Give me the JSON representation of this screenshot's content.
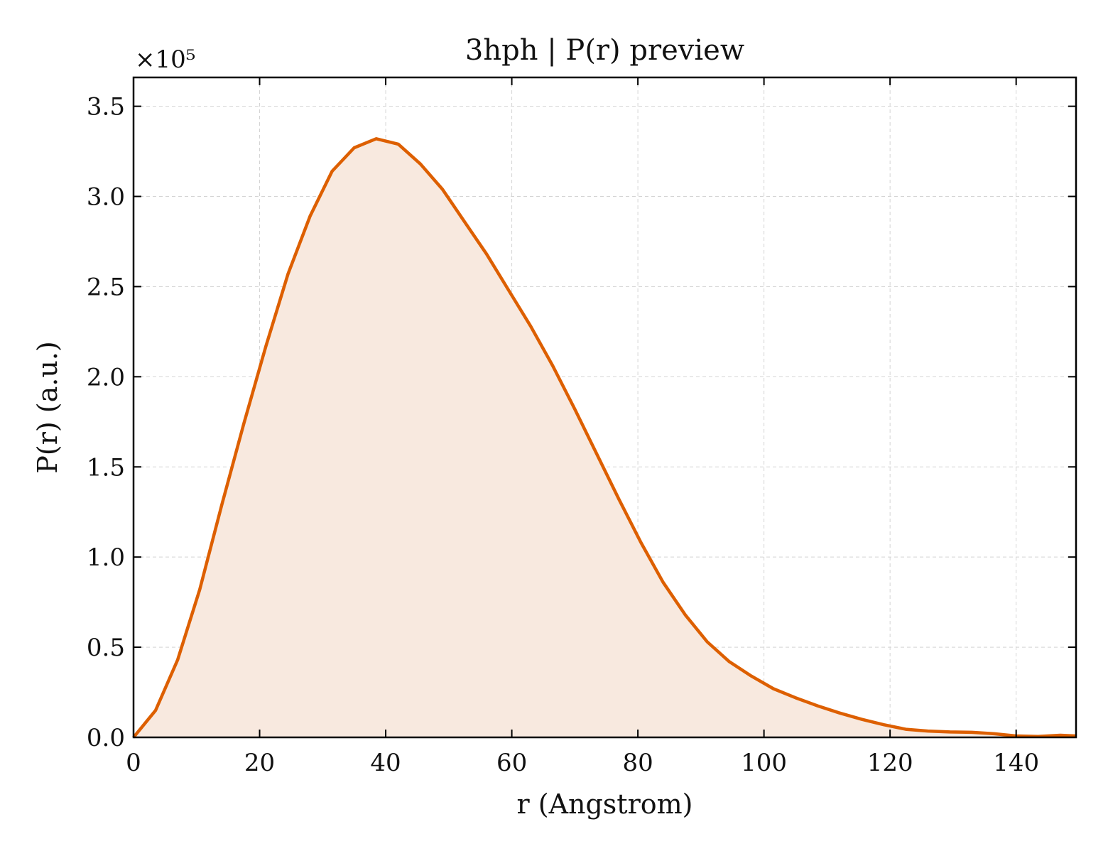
{
  "chart_data": {
    "type": "area",
    "title": "3hph | P(r) preview",
    "xlabel": "r (Angstrom)",
    "ylabel": "P(r) (a.u.)",
    "y_multiplier_label": "×10⁵",
    "xlim": [
      0,
      149.5
    ],
    "ylim": [
      0,
      3.66
    ],
    "y_units_factor": 100000,
    "grid": true,
    "legend": "none",
    "x_ticks": [
      0,
      20,
      40,
      60,
      80,
      100,
      120,
      140
    ],
    "x_tick_labels": [
      "0",
      "20",
      "40",
      "60",
      "80",
      "100",
      "120",
      "140"
    ],
    "y_ticks": [
      0,
      0.5,
      1.0,
      1.5,
      2.0,
      2.5,
      3.0,
      3.5
    ],
    "y_tick_labels": [
      "0.0",
      "0.5",
      "1.0",
      "1.5",
      "2.0",
      "2.5",
      "3.0",
      "3.5"
    ],
    "line_color": "#dd5f00",
    "fill_color": "#f8e9df",
    "series": [
      {
        "x": [
          0,
          3.5,
          7.0,
          10.5,
          14.0,
          17.5,
          21.0,
          24.5,
          28.0,
          31.5,
          35.0,
          38.5,
          42.0,
          45.5,
          49.0,
          52.5,
          56.0,
          59.5,
          63.0,
          66.5,
          70.0,
          73.5,
          77.0,
          80.5,
          84.0,
          87.5,
          91.0,
          94.5,
          98.0,
          101.5,
          105.0,
          108.5,
          112.0,
          115.5,
          119.0,
          122.5,
          126.0,
          129.5,
          133.0,
          136.5,
          140.0,
          143.5,
          147.0,
          149.5
        ],
        "y": [
          0.0,
          0.15,
          0.43,
          0.82,
          1.29,
          1.74,
          2.17,
          2.57,
          2.89,
          3.14,
          3.27,
          3.32,
          3.29,
          3.18,
          3.04,
          2.86,
          2.68,
          2.48,
          2.28,
          2.06,
          1.82,
          1.57,
          1.32,
          1.08,
          0.86,
          0.68,
          0.53,
          0.42,
          0.34,
          0.27,
          0.22,
          0.175,
          0.135,
          0.1,
          0.07,
          0.045,
          0.035,
          0.03,
          0.028,
          0.02,
          0.008,
          0.005,
          0.012,
          0.008
        ]
      }
    ]
  }
}
